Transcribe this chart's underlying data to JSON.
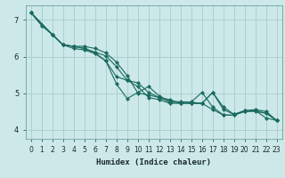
{
  "xlabel": "Humidex (Indice chaleur)",
  "bg_color": "#cce8e8",
  "grid_color": "#aacccc",
  "line_color": "#1a6a60",
  "xlim": [
    -0.5,
    23.5
  ],
  "ylim": [
    3.75,
    7.4
  ],
  "xticks": [
    0,
    1,
    2,
    3,
    4,
    5,
    6,
    7,
    8,
    9,
    10,
    11,
    12,
    13,
    14,
    15,
    16,
    17,
    18,
    19,
    20,
    21,
    22,
    23
  ],
  "yticks": [
    4,
    5,
    6,
    7
  ],
  "lines": [
    {
      "x": [
        0,
        1,
        2,
        3,
        4,
        5,
        6,
        7,
        8,
        9,
        10,
        11,
        12,
        13,
        14,
        15,
        16,
        17,
        18,
        19,
        20,
        21,
        22,
        23
      ],
      "y": [
        7.2,
        6.85,
        6.6,
        6.32,
        6.22,
        6.18,
        6.08,
        5.88,
        5.25,
        4.85,
        5.02,
        5.18,
        4.92,
        4.78,
        4.76,
        4.76,
        5.02,
        4.62,
        4.4,
        4.4,
        4.5,
        4.52,
        4.32,
        4.25
      ]
    },
    {
      "x": [
        0,
        2,
        3,
        4,
        5,
        6,
        7,
        8,
        9,
        10,
        11,
        12,
        13,
        14,
        15,
        16,
        17,
        18,
        19,
        20,
        21,
        22,
        23
      ],
      "y": [
        7.2,
        6.6,
        6.32,
        6.28,
        6.28,
        6.22,
        6.1,
        5.85,
        5.48,
        5.0,
        4.95,
        4.88,
        4.75,
        4.75,
        4.75,
        4.72,
        5.02,
        4.62,
        4.42,
        4.52,
        4.52,
        4.45,
        4.25
      ]
    },
    {
      "x": [
        0,
        2,
        3,
        4,
        5,
        6,
        7,
        8,
        9,
        10,
        11,
        12,
        13,
        14,
        15,
        16,
        17,
        18,
        19,
        20,
        21,
        22,
        23
      ],
      "y": [
        7.2,
        6.6,
        6.32,
        6.28,
        6.22,
        6.12,
        6.02,
        5.72,
        5.35,
        5.18,
        4.88,
        4.82,
        4.72,
        4.72,
        4.72,
        4.72,
        5.02,
        4.55,
        4.42,
        4.52,
        4.55,
        4.5,
        4.25
      ]
    },
    {
      "x": [
        0,
        1,
        2,
        3,
        4,
        5,
        6,
        7,
        8,
        9,
        10,
        11,
        12,
        13,
        14,
        15,
        16,
        17,
        18,
        19,
        20,
        21,
        22,
        23
      ],
      "y": [
        7.2,
        6.85,
        6.6,
        6.32,
        6.28,
        6.22,
        6.1,
        5.88,
        5.45,
        5.35,
        5.28,
        5.02,
        4.88,
        4.82,
        4.72,
        4.72,
        4.72,
        4.55,
        4.4,
        4.4,
        4.5,
        4.5,
        4.45,
        4.25
      ]
    }
  ]
}
